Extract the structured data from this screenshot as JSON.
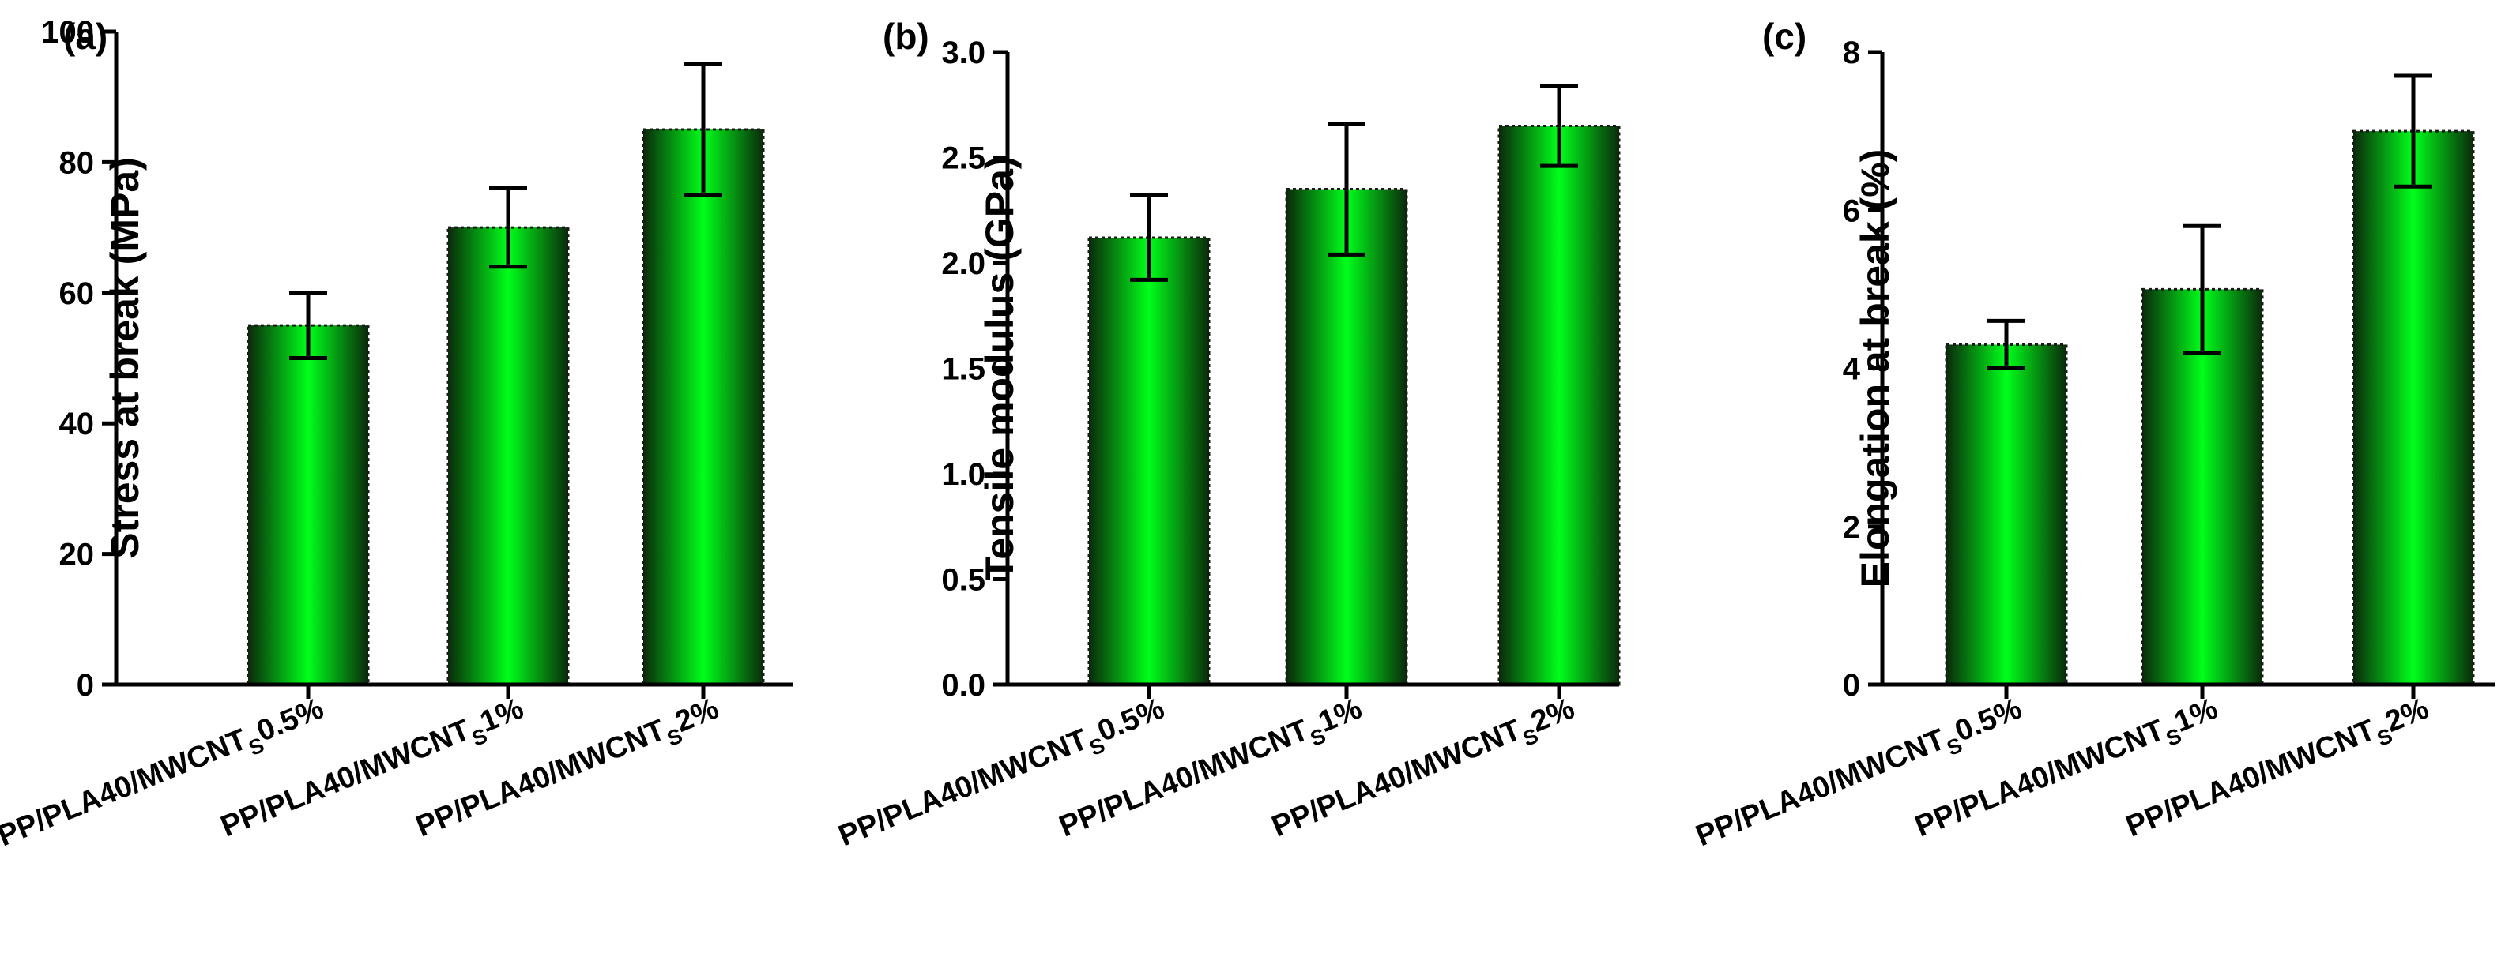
{
  "colors": {
    "bar_edge": "#0a2a0a",
    "bar_center": "#00ff1a",
    "axis": "#000000"
  },
  "chart_data": [
    {
      "type": "bar",
      "panel_label": "(a)",
      "ylabel": "Stress at break (MPa)",
      "ylim": [
        0,
        100
      ],
      "yticks": [
        0,
        20,
        40,
        60,
        80,
        100
      ],
      "tick_labels": [
        "0",
        "20",
        "40",
        "60",
        "80",
        "100"
      ],
      "categories": [
        {
          "main": "PP/PLA40/MWCNT",
          "sub": "S",
          "suffix": "0.5%"
        },
        {
          "main": "PP/PLA40/MWCNT",
          "sub": "S",
          "suffix": "1%"
        },
        {
          "main": "PP/PLA40/MWCNT",
          "sub": "S",
          "suffix": "2%"
        }
      ],
      "values": [
        55,
        70,
        85
      ],
      "errors": [
        5,
        6,
        10
      ]
    },
    {
      "type": "bar",
      "panel_label": "(b)",
      "ylabel": "Tensile modulus (GPa)",
      "ylim": [
        0,
        3.0
      ],
      "yticks": [
        0,
        0.5,
        1.0,
        1.5,
        2.0,
        2.5,
        3.0
      ],
      "tick_labels": [
        "0.0",
        "0.5",
        "1.0",
        "1.5",
        "2.0",
        "2.5",
        "3.0"
      ],
      "categories": [
        {
          "main": "PP/PLA40/MWCNT",
          "sub": "S",
          "suffix": "0.5%"
        },
        {
          "main": "PP/PLA40/MWCNT",
          "sub": "S",
          "suffix": "1%"
        },
        {
          "main": "PP/PLA40/MWCNT",
          "sub": "S",
          "suffix": "2%"
        }
      ],
      "values": [
        2.12,
        2.35,
        2.65
      ],
      "errors": [
        0.2,
        0.31,
        0.19
      ]
    },
    {
      "type": "bar",
      "panel_label": "(c)",
      "ylabel": "Elongation at break (%)",
      "ylim": [
        0,
        8
      ],
      "yticks": [
        0,
        2,
        4,
        6,
        8
      ],
      "tick_labels": [
        "0",
        "2",
        "4",
        "6",
        "8"
      ],
      "categories": [
        {
          "main": "PP/PLA40/MWCNT",
          "sub": "S",
          "suffix": "0.5%"
        },
        {
          "main": "PP/PLA40/MWCNT",
          "sub": "S",
          "suffix": "1%"
        },
        {
          "main": "PP/PLA40/MWCNT",
          "sub": "S",
          "suffix": "2%"
        }
      ],
      "values": [
        4.3,
        5.0,
        7.0
      ],
      "errors": [
        0.3,
        0.8,
        0.7
      ]
    }
  ]
}
